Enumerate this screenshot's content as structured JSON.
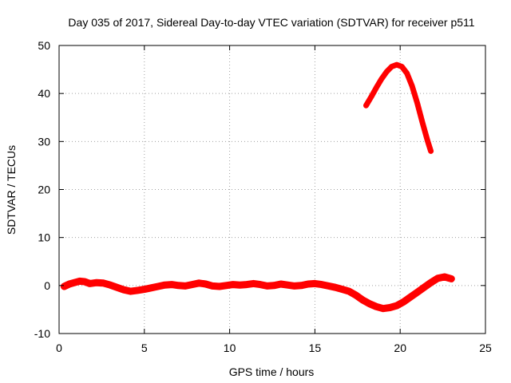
{
  "chart_data": {
    "type": "line",
    "title": "Day 035 of 2017, Sidereal Day-to-day VTEC variation (SDTVAR) for receiver p511",
    "xlabel": "GPS time / hours",
    "ylabel": "SDTVAR / TECUs",
    "xlim": [
      0,
      25
    ],
    "ylim": [
      -10,
      50
    ],
    "x_ticks": [
      0,
      5,
      10,
      15,
      20,
      25
    ],
    "y_ticks": [
      -10,
      0,
      10,
      20,
      30,
      40,
      50
    ],
    "grid": true,
    "series_color": "#ff0000",
    "series": [
      {
        "name": "baseline",
        "points": [
          [
            0.3,
            -0.2
          ],
          [
            0.6,
            0.3
          ],
          [
            0.9,
            0.6
          ],
          [
            1.2,
            0.9
          ],
          [
            1.5,
            0.8
          ],
          [
            1.8,
            0.4
          ],
          [
            2.2,
            0.6
          ],
          [
            2.6,
            0.5
          ],
          [
            3.0,
            0.1
          ],
          [
            3.4,
            -0.4
          ],
          [
            3.8,
            -0.9
          ],
          [
            4.2,
            -1.2
          ],
          [
            4.6,
            -1.0
          ],
          [
            5.0,
            -0.8
          ],
          [
            5.4,
            -0.5
          ],
          [
            5.8,
            -0.2
          ],
          [
            6.2,
            0.1
          ],
          [
            6.6,
            0.2
          ],
          [
            7.0,
            0.0
          ],
          [
            7.4,
            -0.1
          ],
          [
            7.8,
            0.2
          ],
          [
            8.2,
            0.5
          ],
          [
            8.6,
            0.3
          ],
          [
            9.0,
            -0.1
          ],
          [
            9.4,
            -0.2
          ],
          [
            9.8,
            0.0
          ],
          [
            10.2,
            0.2
          ],
          [
            10.6,
            0.1
          ],
          [
            11.0,
            0.2
          ],
          [
            11.4,
            0.4
          ],
          [
            11.8,
            0.2
          ],
          [
            12.2,
            -0.1
          ],
          [
            12.6,
            0.0
          ],
          [
            13.0,
            0.3
          ],
          [
            13.4,
            0.1
          ],
          [
            13.8,
            -0.1
          ],
          [
            14.2,
            0.0
          ],
          [
            14.6,
            0.3
          ],
          [
            15.0,
            0.4
          ],
          [
            15.4,
            0.2
          ],
          [
            15.8,
            -0.1
          ],
          [
            16.2,
            -0.4
          ],
          [
            16.6,
            -0.8
          ],
          [
            17.0,
            -1.2
          ],
          [
            17.4,
            -2.0
          ],
          [
            17.8,
            -3.0
          ],
          [
            18.2,
            -3.8
          ],
          [
            18.6,
            -4.4
          ],
          [
            19.0,
            -4.8
          ],
          [
            19.4,
            -4.6
          ],
          [
            19.8,
            -4.2
          ],
          [
            20.2,
            -3.4
          ],
          [
            20.6,
            -2.4
          ],
          [
            21.0,
            -1.4
          ],
          [
            21.4,
            -0.4
          ],
          [
            21.8,
            0.6
          ],
          [
            22.2,
            1.5
          ],
          [
            22.6,
            1.8
          ],
          [
            23.0,
            1.4
          ]
        ]
      },
      {
        "name": "arc",
        "points": [
          [
            18.0,
            37.5
          ],
          [
            18.3,
            39.3
          ],
          [
            18.6,
            41.2
          ],
          [
            18.9,
            43.0
          ],
          [
            19.2,
            44.5
          ],
          [
            19.5,
            45.6
          ],
          [
            19.8,
            46.0
          ],
          [
            20.1,
            45.6
          ],
          [
            20.4,
            44.2
          ],
          [
            20.7,
            41.5
          ],
          [
            21.0,
            38.0
          ],
          [
            21.3,
            34.0
          ],
          [
            21.6,
            30.2
          ],
          [
            21.8,
            28.0
          ]
        ]
      }
    ]
  }
}
